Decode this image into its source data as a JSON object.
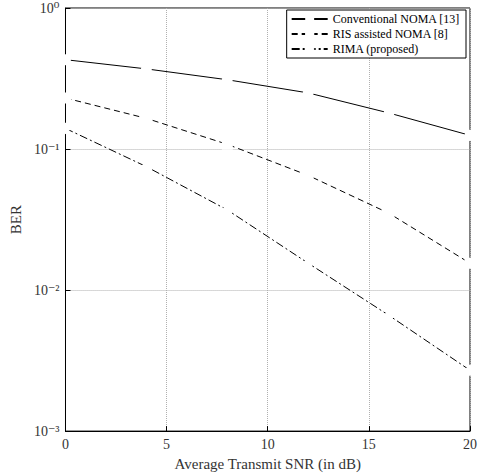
{
  "chart_data": {
    "type": "line",
    "x_label": "Average Transmit SNR (in dB)",
    "y_label": "BER",
    "x": [
      0,
      4,
      8,
      12,
      16,
      20
    ],
    "series": [
      {
        "name": "Conventional NOMA [13]",
        "color": "#000000",
        "marker": "circle",
        "line_style": "solid",
        "values": [
          0.43,
          0.37,
          0.31,
          0.25,
          0.18,
          0.125
        ]
      },
      {
        "name": "RIS assisted NOMA [8]",
        "color": "#000000",
        "marker": "square",
        "line_style": "dashed",
        "values": [
          0.23,
          0.165,
          0.108,
          0.065,
          0.035,
          0.0155
        ]
      },
      {
        "name": "RIMA (proposed)",
        "color": "#000000",
        "marker": "diamond",
        "line_style": "dashdot",
        "values": [
          0.14,
          0.075,
          0.037,
          0.0155,
          0.0066,
          0.0027
        ]
      }
    ],
    "xlim": [
      0,
      20
    ],
    "xticks": [
      0,
      5,
      10,
      15,
      20
    ],
    "ylim": [
      0.001,
      1
    ],
    "yticks": [
      {
        "value": 0.001,
        "label": "10⁻³"
      },
      {
        "value": 0.01,
        "label": "10⁻²"
      },
      {
        "value": 0.1,
        "label": "10⁻¹"
      },
      {
        "value": 1,
        "label": "10⁰"
      }
    ],
    "log": "y",
    "grid": true,
    "legend": "upper right"
  }
}
